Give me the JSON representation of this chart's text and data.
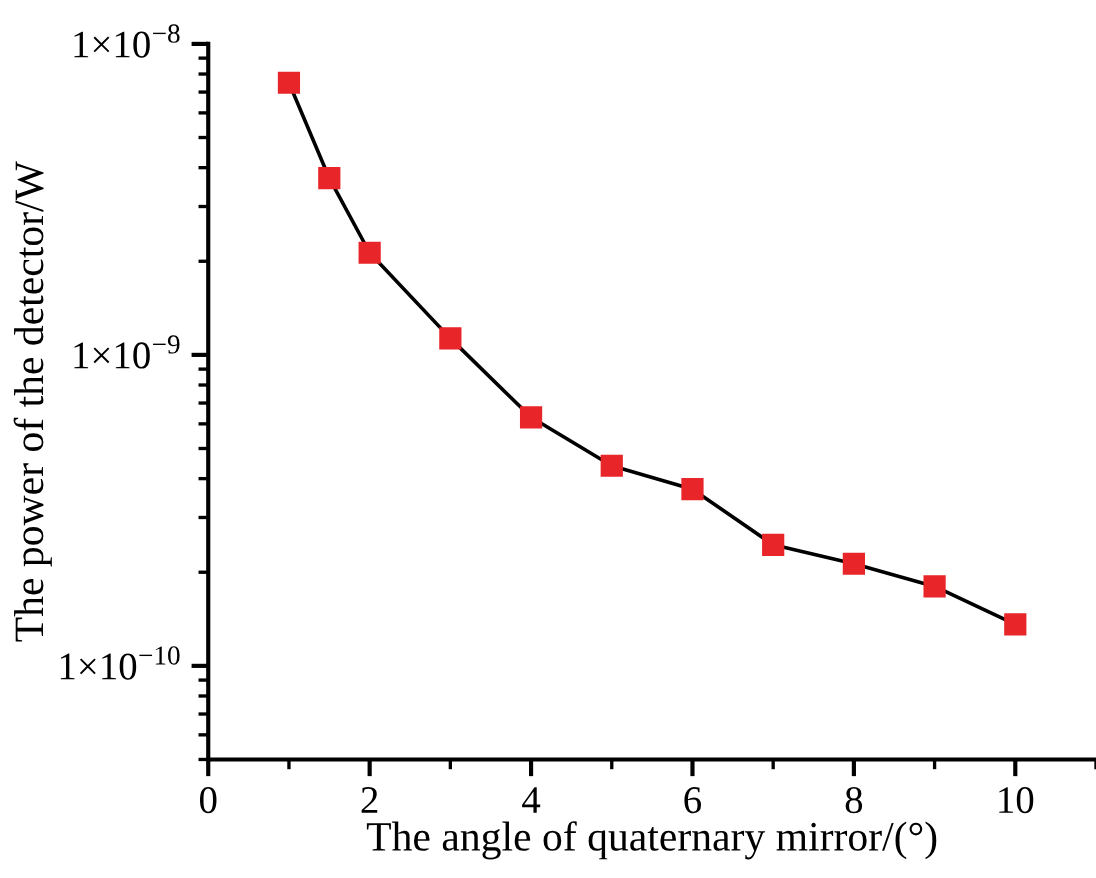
{
  "chart_data": {
    "type": "line",
    "xlabel": "The angle of quaternary mirror/(°)",
    "ylabel": "The power of the detector/W",
    "x": [
      1,
      1.5,
      2,
      3,
      4,
      5,
      6,
      7,
      8,
      9,
      10
    ],
    "series": [
      {
        "color": "#e8262a",
        "values": [
          7.5e-09,
          3.7e-09,
          2.13e-09,
          1.13e-09,
          6.3e-10,
          4.4e-10,
          3.7e-10,
          2.45e-10,
          2.13e-10,
          1.8e-10,
          1.36e-10
        ]
      }
    ],
    "marker": "square",
    "line_style": "solid",
    "log": "y",
    "grid": false,
    "legend": false,
    "xlim": [
      0,
      11
    ],
    "xticks": [
      0,
      2,
      4,
      6,
      8,
      10
    ],
    "ylim": [
      5e-11,
      1e-08
    ],
    "yticks": [
      {
        "value": 1e-10,
        "label": "1×10$^{−10}$"
      },
      {
        "value": 1e-09,
        "label": "1×10$^{−9}$"
      },
      {
        "value": 1e-08,
        "label": "1×10$^{−8}$"
      }
    ]
  }
}
